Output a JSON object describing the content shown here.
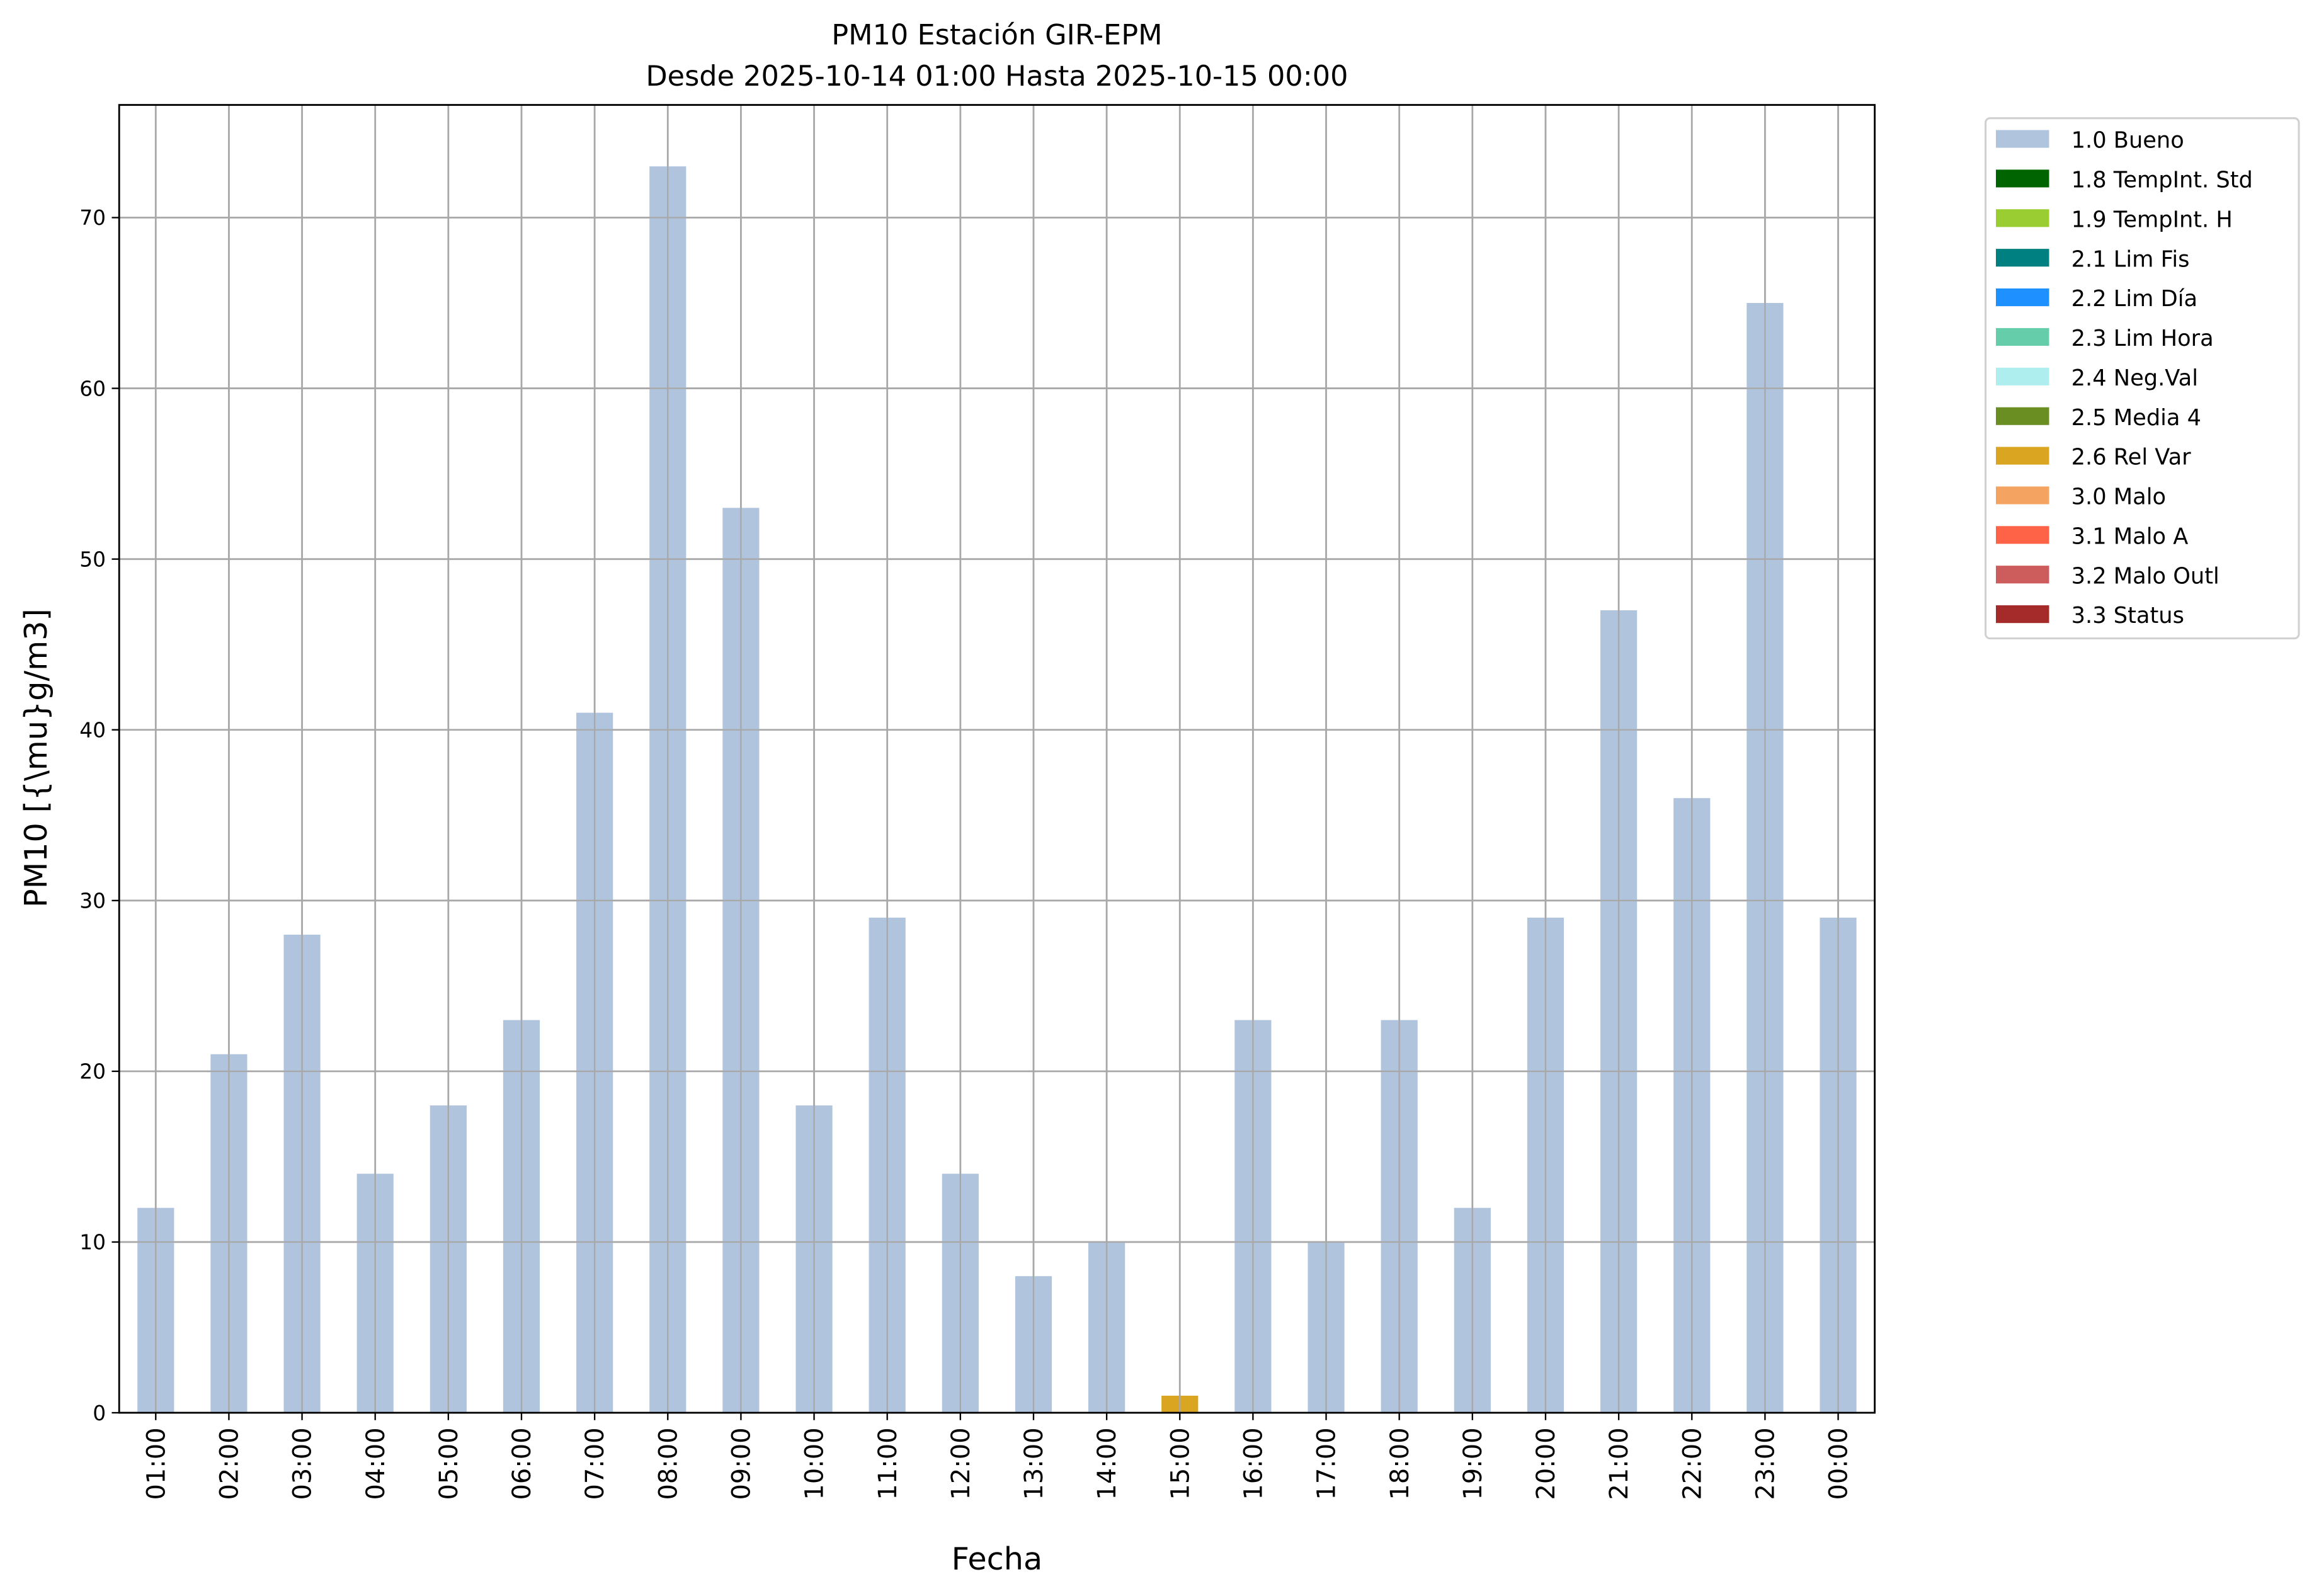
{
  "chart_data": {
    "type": "bar",
    "title": "PM10 Estación GIR-EPM",
    "subtitle": "Desde 2025-10-14 01:00 Hasta 2025-10-15 00:00",
    "xlabel": "Fecha",
    "ylabel": "PM10 [{\\mu}g/m3]",
    "ylim": [
      0,
      76.6
    ],
    "yticks": [
      0,
      10,
      20,
      30,
      40,
      50,
      60,
      70
    ],
    "grid": true,
    "legend_position": "outside-top-right",
    "categories": [
      "01:00",
      "02:00",
      "03:00",
      "04:00",
      "05:00",
      "06:00",
      "07:00",
      "08:00",
      "09:00",
      "10:00",
      "11:00",
      "12:00",
      "13:00",
      "14:00",
      "15:00",
      "16:00",
      "17:00",
      "18:00",
      "19:00",
      "20:00",
      "21:00",
      "22:00",
      "23:00",
      "00:00"
    ],
    "values": [
      12,
      21,
      28,
      14,
      18,
      23,
      41,
      73,
      53,
      18,
      29,
      14,
      8,
      10,
      1,
      23,
      10,
      23,
      12,
      29,
      47,
      36,
      65,
      29
    ],
    "flags": [
      "1.0 Bueno",
      "1.0 Bueno",
      "1.0 Bueno",
      "1.0 Bueno",
      "1.0 Bueno",
      "1.0 Bueno",
      "1.0 Bueno",
      "1.0 Bueno",
      "1.0 Bueno",
      "1.0 Bueno",
      "1.0 Bueno",
      "1.0 Bueno",
      "1.0 Bueno",
      "1.0 Bueno",
      "2.6 Rel Var",
      "1.0 Bueno",
      "1.0 Bueno",
      "1.0 Bueno",
      "1.0 Bueno",
      "1.0 Bueno",
      "1.0 Bueno",
      "1.0 Bueno",
      "1.0 Bueno",
      "1.0 Bueno"
    ],
    "legend": [
      {
        "label": "1.0 Bueno",
        "color": "#b0c4de"
      },
      {
        "label": "1.8 TempInt. Std",
        "color": "#006400"
      },
      {
        "label": "1.9 TempInt. H",
        "color": "#9acd32"
      },
      {
        "label": "2.1 Lim Fis",
        "color": "#008080"
      },
      {
        "label": "2.2 Lim Día",
        "color": "#1e90ff"
      },
      {
        "label": "2.3 Lim Hora",
        "color": "#66cdaa"
      },
      {
        "label": "2.4 Neg.Val",
        "color": "#afeeee"
      },
      {
        "label": "2.5 Media 4",
        "color": "#6b8e23"
      },
      {
        "label": "2.6 Rel Var",
        "color": "#daa520"
      },
      {
        "label": "3.0 Malo",
        "color": "#f4a460"
      },
      {
        "label": "3.1 Malo A",
        "color": "#ff6347"
      },
      {
        "label": "3.2 Malo Outl",
        "color": "#cd5c5c"
      },
      {
        "label": "3.3 Status",
        "color": "#a52a2a"
      }
    ]
  }
}
